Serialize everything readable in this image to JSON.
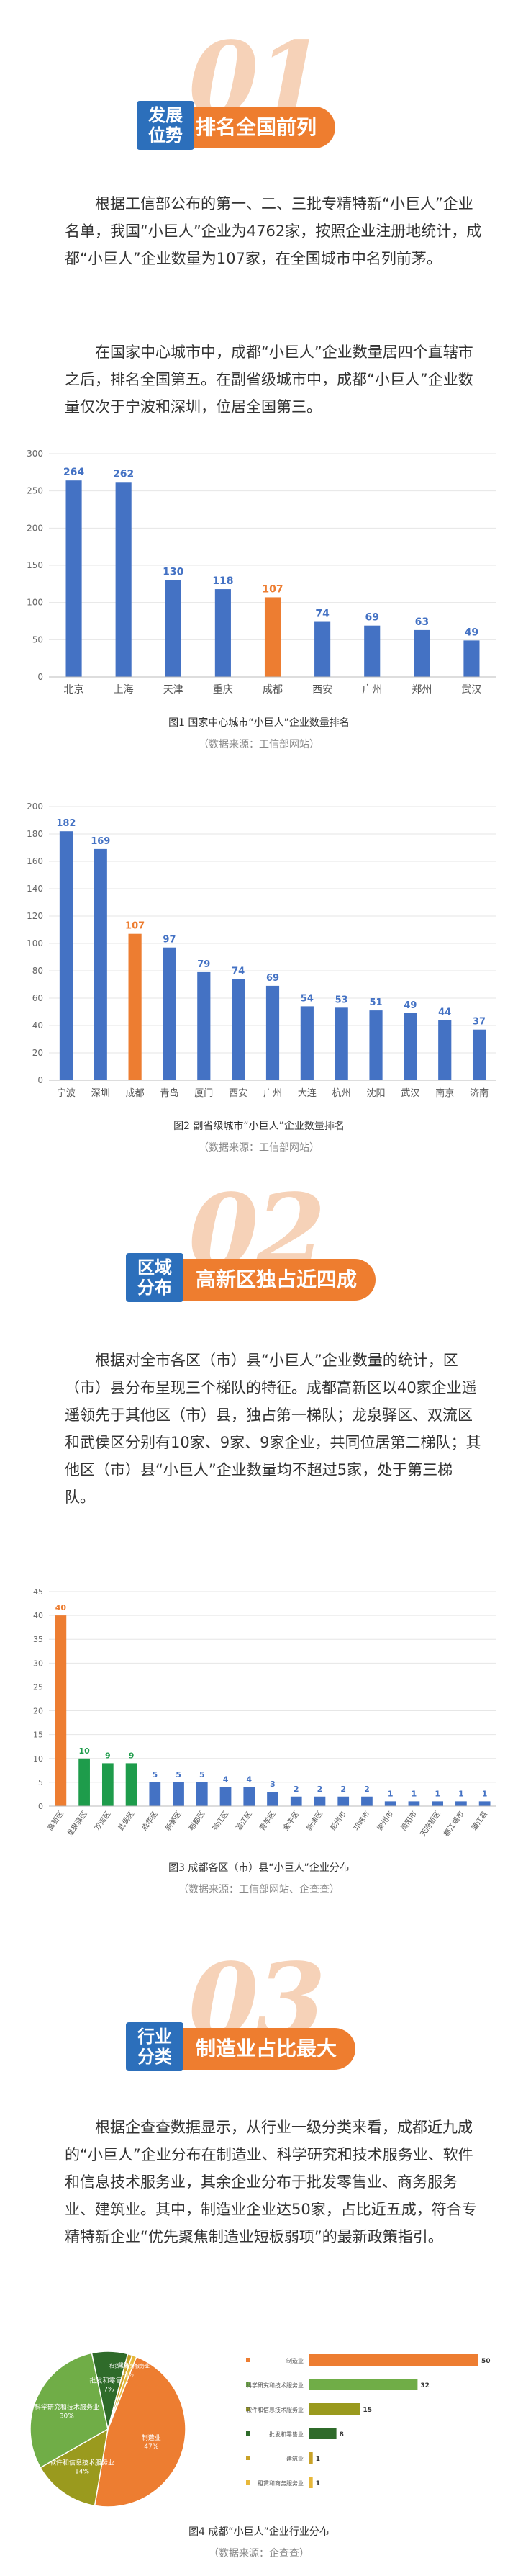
{
  "sections": [
    {
      "number": "01",
      "tag_line1": "发展",
      "tag_line2": "位势",
      "title": "排名全国前列"
    },
    {
      "number": "02",
      "tag_line1": "区域",
      "tag_line2": "分布",
      "title": "高新区独占近四成"
    },
    {
      "number": "03",
      "tag_line1": "行业",
      "tag_line2": "分类",
      "title": "制造业占比最大"
    }
  ],
  "paragraphs": {
    "p1": "根据工信部公布的第一、二、三批专精特新“小巨人”企业名单，我国“小巨人”企业为4762家，按照企业注册地统计，成都“小巨人”企业数量为107家，在全国城市中名列前茅。",
    "p2": "在国家中心城市中，成都“小巨人”企业数量居四个直辖市之后，排名全国第五。在副省级城市中，成都“小巨人”企业数量仅次于宁波和深圳，位居全国第三。",
    "p3": "根据对全市各区（市）县“小巨人”企业数量的统计，区（市）县分布呈现三个梯队的特征。成都高新区以40家企业遥遥领先于其他区（市）县，独占第一梯队；龙泉驿区、双流区和武侯区分别有10家、9家、9家企业，共同位居第二梯队；其他区（市）县“小巨人”企业数量均不超过5家，处于第三梯队。",
    "p4": "根据企查查数据显示，从行业一级分类来看，成都近九成的“小巨人”企业分布在制造业、科学研究和技术服务业、软件和信息技术服务业，其余企业分布于批发零售业、商务服务业、建筑业。其中，制造业企业达50家，占比近五成，符合专精特新企业“优先聚焦制造业短板弱项”的最新政策指引。"
  },
  "colors": {
    "blue": "#4472c4",
    "orange": "#ed7d31",
    "green": "#1e9c4b",
    "tag_blue": "#2c6fbb",
    "tag_orange": "#ee7d2f"
  },
  "chart_data": [
    {
      "type": "bar",
      "caption": "图1 国家中心城市“小巨人”企业数量排名",
      "source": "（数据来源：工信部网站）",
      "categories": [
        "北京",
        "上海",
        "天津",
        "重庆",
        "成都",
        "西安",
        "广州",
        "郑州",
        "武汉"
      ],
      "values": [
        264,
        262,
        130,
        118,
        107,
        74,
        69,
        63,
        49
      ],
      "highlight": "成都",
      "ylim": [
        0,
        300
      ],
      "yticks": [
        0,
        50,
        100,
        150,
        200,
        250,
        300
      ]
    },
    {
      "type": "bar",
      "caption": "图2 副省级城市“小巨人”企业数量排名",
      "source": "（数据来源：工信部网站）",
      "categories": [
        "宁波",
        "深圳",
        "成都",
        "青岛",
        "厦门",
        "西安",
        "广州",
        "大连",
        "杭州",
        "沈阳",
        "武汉",
        "南京",
        "济南"
      ],
      "values": [
        182,
        169,
        107,
        97,
        79,
        74,
        69,
        54,
        53,
        51,
        49,
        44,
        37
      ],
      "highlight": "成都",
      "ylim": [
        0,
        200
      ],
      "yticks": [
        0,
        20,
        40,
        60,
        80,
        100,
        120,
        140,
        160,
        180,
        200
      ]
    },
    {
      "type": "bar",
      "caption": "图3 成都各区（市）县“小巨人”企业分布",
      "source": "（数据来源：工信部网站、企查查）",
      "categories": [
        "高新区",
        "龙泉驿区",
        "双流区",
        "武侯区",
        "成华区",
        "新都区",
        "郫都区",
        "锦江区",
        "温江区",
        "青羊区",
        "金牛区",
        "新津区",
        "彭州市",
        "邛崃市",
        "崇州市",
        "简阳市",
        "天府新区",
        "都江堰市",
        "蒲江县"
      ],
      "values": [
        40,
        10,
        9,
        9,
        5,
        5,
        5,
        4,
        4,
        3,
        2,
        2,
        2,
        2,
        1,
        1,
        1,
        1,
        1
      ],
      "ylim": [
        0,
        45
      ],
      "yticks": [
        0,
        5,
        10,
        15,
        20,
        25,
        30,
        35,
        40,
        45
      ]
    },
    {
      "type": "pie",
      "caption": "图4 成都“小巨人”企业行业分布",
      "source": "（数据来源：企查查）",
      "slices": [
        {
          "name": "制造业",
          "pct": "47%",
          "value": 50,
          "color": "#ed7d31"
        },
        {
          "name": "软件和信息技术服务业",
          "pct": "14%",
          "value": 15,
          "color": "#9a9a1e"
        },
        {
          "name": "科学研究和技术服务业",
          "pct": "30%",
          "value": 32,
          "color": "#70ad47"
        },
        {
          "name": "批发和零售业",
          "pct": "7%",
          "value": 8,
          "color": "#2f6b2a"
        },
        {
          "name": "建筑业",
          "pct": "1%",
          "value": 1,
          "color": "#c9a227"
        },
        {
          "name": "租赁和商务服务业",
          "pct": "1%",
          "value": 1,
          "color": "#e8b83a"
        }
      ],
      "bars": [
        {
          "name": "制造业",
          "value": 50,
          "color": "#ed7d31"
        },
        {
          "name": "科学研究和技术服务业",
          "value": 32,
          "color": "#70ad47"
        },
        {
          "name": "软件和信息技术服务业",
          "value": 15,
          "color": "#9a9a1e"
        },
        {
          "name": "批发和零售业",
          "value": 8,
          "color": "#2f6b2a"
        },
        {
          "name": "建筑业",
          "value": 1,
          "color": "#c9a227"
        },
        {
          "name": "租赁和商务服务业",
          "value": 1,
          "color": "#e8b83a"
        }
      ]
    }
  ]
}
